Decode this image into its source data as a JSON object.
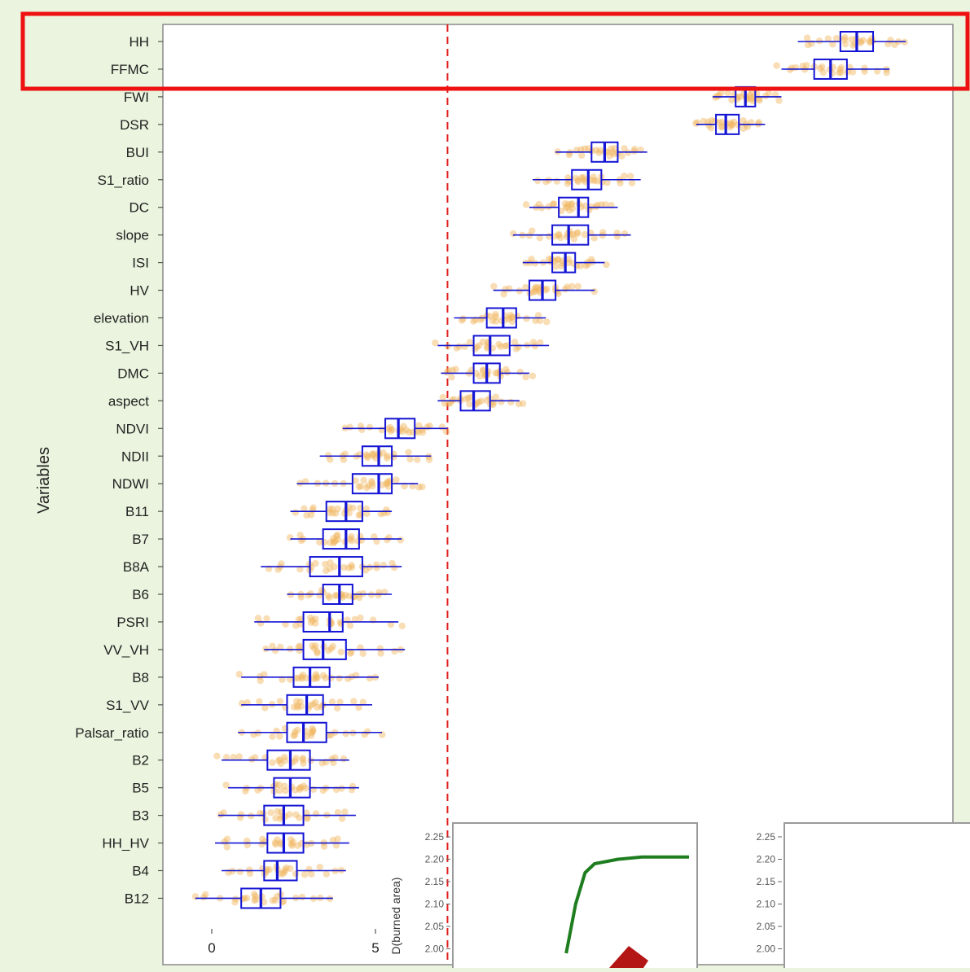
{
  "chart_data": [
    {
      "type": "boxplot",
      "ylabel": "Variables",
      "xlim": [
        -1.5,
        22.8
      ],
      "xticks": [
        0,
        5
      ],
      "reference_line_x": 7.2,
      "highlighted_rows": [
        "HH",
        "FFMC"
      ],
      "colors": {
        "box": "#1414d4",
        "points": "#f0b45a",
        "reference": "#e02020",
        "highlight": "#ee1111"
      },
      "boxes": [
        {
          "label": "HH",
          "whisker_low": 17.9,
          "q1": 19.2,
          "median": 19.7,
          "q3": 20.2,
          "whisker_high": 21.2
        },
        {
          "label": "FFMC",
          "whisker_low": 17.4,
          "q1": 18.4,
          "median": 18.9,
          "q3": 19.4,
          "whisker_high": 20.7
        },
        {
          "label": "FWI",
          "whisker_low": 15.3,
          "q1": 16.0,
          "median": 16.3,
          "q3": 16.6,
          "whisker_high": 17.4
        },
        {
          "label": "DSR",
          "whisker_low": 14.8,
          "q1": 15.4,
          "median": 15.7,
          "q3": 16.1,
          "whisker_high": 16.9
        },
        {
          "label": "BUI",
          "whisker_low": 10.5,
          "q1": 11.6,
          "median": 12.0,
          "q3": 12.4,
          "whisker_high": 13.3
        },
        {
          "label": "S1_ratio",
          "whisker_low": 9.8,
          "q1": 11.0,
          "median": 11.5,
          "q3": 11.9,
          "whisker_high": 13.1
        },
        {
          "label": "DC",
          "whisker_low": 9.7,
          "q1": 10.6,
          "median": 11.2,
          "q3": 11.5,
          "whisker_high": 12.4
        },
        {
          "label": "slope",
          "whisker_low": 9.2,
          "q1": 10.4,
          "median": 10.9,
          "q3": 11.5,
          "whisker_high": 12.8
        },
        {
          "label": "ISI",
          "whisker_low": 9.5,
          "q1": 10.4,
          "median": 10.8,
          "q3": 11.1,
          "whisker_high": 12.0
        },
        {
          "label": "HV",
          "whisker_low": 8.6,
          "q1": 9.7,
          "median": 10.1,
          "q3": 10.5,
          "whisker_high": 11.7
        },
        {
          "label": "elevation",
          "whisker_low": 7.4,
          "q1": 8.4,
          "median": 8.9,
          "q3": 9.3,
          "whisker_high": 10.2
        },
        {
          "label": "S1_VH",
          "whisker_low": 6.9,
          "q1": 8.0,
          "median": 8.5,
          "q3": 9.1,
          "whisker_high": 10.3
        },
        {
          "label": "DMC",
          "whisker_low": 7.0,
          "q1": 8.0,
          "median": 8.4,
          "q3": 8.8,
          "whisker_high": 9.7
        },
        {
          "label": "aspect",
          "whisker_low": 6.9,
          "q1": 7.6,
          "median": 8.0,
          "q3": 8.5,
          "whisker_high": 9.4
        },
        {
          "label": "NDVI",
          "whisker_low": 4.0,
          "q1": 5.3,
          "median": 5.7,
          "q3": 6.2,
          "whisker_high": 7.2
        },
        {
          "label": "NDII",
          "whisker_low": 3.3,
          "q1": 4.6,
          "median": 5.1,
          "q3": 5.5,
          "whisker_high": 6.7
        },
        {
          "label": "NDWI",
          "whisker_low": 2.6,
          "q1": 4.3,
          "median": 5.1,
          "q3": 5.5,
          "whisker_high": 6.3
        },
        {
          "label": "B11",
          "whisker_low": 2.4,
          "q1": 3.5,
          "median": 4.1,
          "q3": 4.6,
          "whisker_high": 5.5
        },
        {
          "label": "B7",
          "whisker_low": 2.4,
          "q1": 3.4,
          "median": 4.1,
          "q3": 4.5,
          "whisker_high": 5.8
        },
        {
          "label": "B8A",
          "whisker_low": 1.5,
          "q1": 3.0,
          "median": 3.9,
          "q3": 4.6,
          "whisker_high": 5.8
        },
        {
          "label": "B6",
          "whisker_low": 2.3,
          "q1": 3.4,
          "median": 3.9,
          "q3": 4.3,
          "whisker_high": 5.5
        },
        {
          "label": "PSRI",
          "whisker_low": 1.3,
          "q1": 2.8,
          "median": 3.6,
          "q3": 4.0,
          "whisker_high": 5.7
        },
        {
          "label": "VV_VH",
          "whisker_low": 1.6,
          "q1": 2.8,
          "median": 3.4,
          "q3": 4.1,
          "whisker_high": 5.9
        },
        {
          "label": "B8",
          "whisker_low": 0.9,
          "q1": 2.5,
          "median": 3.0,
          "q3": 3.6,
          "whisker_high": 5.1
        },
        {
          "label": "S1_VV",
          "whisker_low": 0.9,
          "q1": 2.3,
          "median": 2.9,
          "q3": 3.4,
          "whisker_high": 4.9
        },
        {
          "label": "Palsar_ratio",
          "whisker_low": 0.8,
          "q1": 2.3,
          "median": 2.8,
          "q3": 3.5,
          "whisker_high": 5.2
        },
        {
          "label": "B2",
          "whisker_low": 0.3,
          "q1": 1.7,
          "median": 2.4,
          "q3": 3.0,
          "whisker_high": 4.2
        },
        {
          "label": "B5",
          "whisker_low": 0.5,
          "q1": 1.9,
          "median": 2.4,
          "q3": 3.0,
          "whisker_high": 4.5
        },
        {
          "label": "B3",
          "whisker_low": 0.2,
          "q1": 1.6,
          "median": 2.2,
          "q3": 2.8,
          "whisker_high": 4.4
        },
        {
          "label": "HH_HV",
          "whisker_low": 0.1,
          "q1": 1.7,
          "median": 2.2,
          "q3": 2.8,
          "whisker_high": 4.2
        },
        {
          "label": "B4",
          "whisker_low": 0.3,
          "q1": 1.6,
          "median": 2.0,
          "q3": 2.6,
          "whisker_high": 4.1
        },
        {
          "label": "B12",
          "whisker_low": -0.5,
          "q1": 0.9,
          "median": 1.5,
          "q3": 2.1,
          "whisker_high": 3.7
        }
      ]
    },
    {
      "type": "line",
      "ylabel": "D(burned area)",
      "yticks": [
        "2.25",
        "2.20",
        "2.15",
        "2.10",
        "2.05",
        "2.00"
      ],
      "colors": {
        "line": "#1e7d1e",
        "arrow": "#b41616"
      },
      "visible_curve": [
        [
          0.48,
          1.99
        ],
        [
          0.52,
          2.1
        ],
        [
          0.56,
          2.17
        ],
        [
          0.6,
          2.19
        ],
        [
          0.7,
          2.2
        ],
        [
          0.8,
          2.205
        ],
        [
          1.0,
          2.205
        ]
      ]
    },
    {
      "type": "line",
      "yticks": [
        "2.25",
        "2.20",
        "2.15",
        "2.10",
        "2.05",
        "2.00"
      ]
    }
  ]
}
